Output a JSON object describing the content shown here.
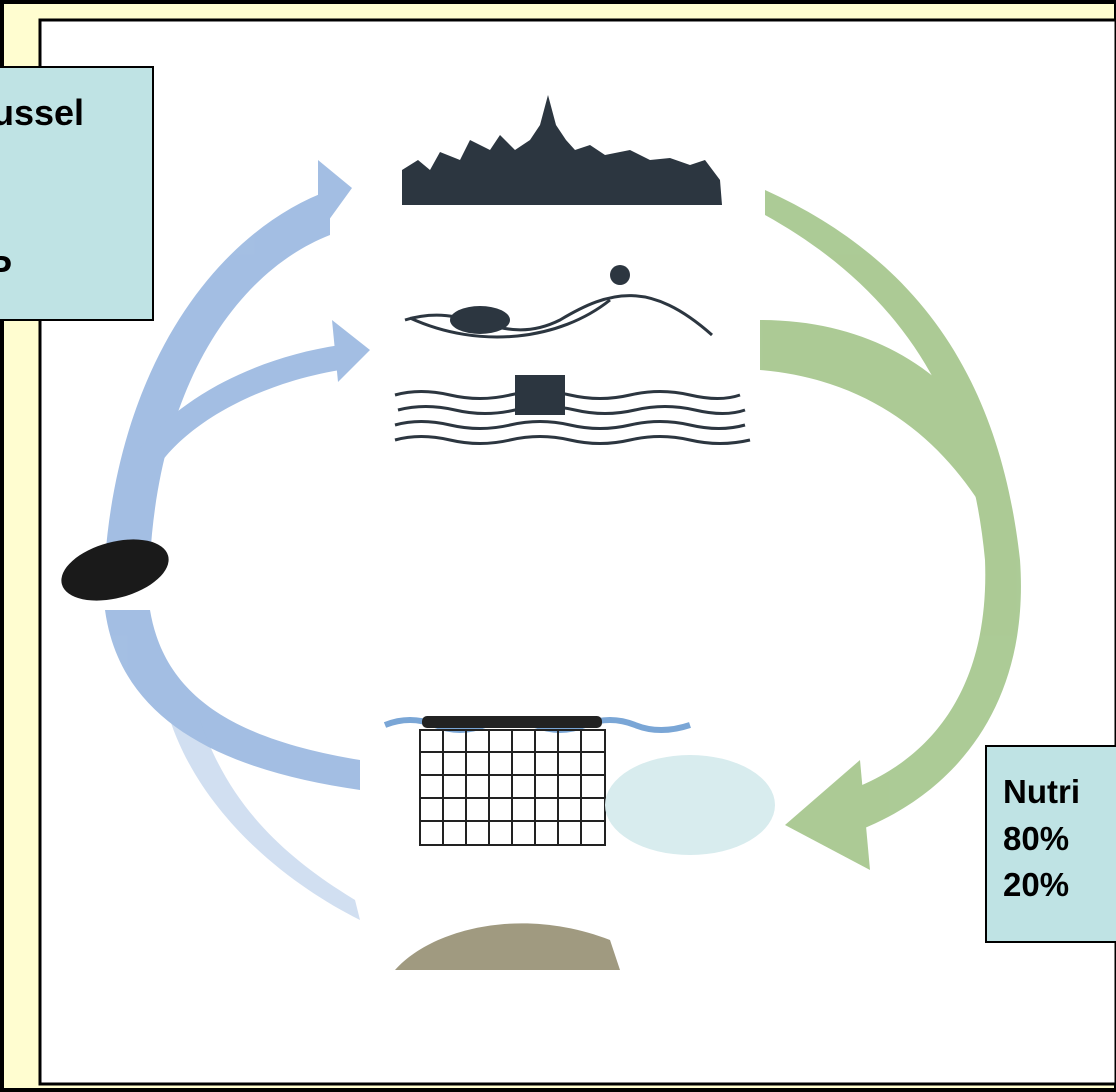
{
  "left_box": {
    "lines": [
      "ussel",
      "P"
    ]
  },
  "right_box": {
    "lines": [
      "Nutri",
      "80%",
      "20%"
    ]
  }
}
